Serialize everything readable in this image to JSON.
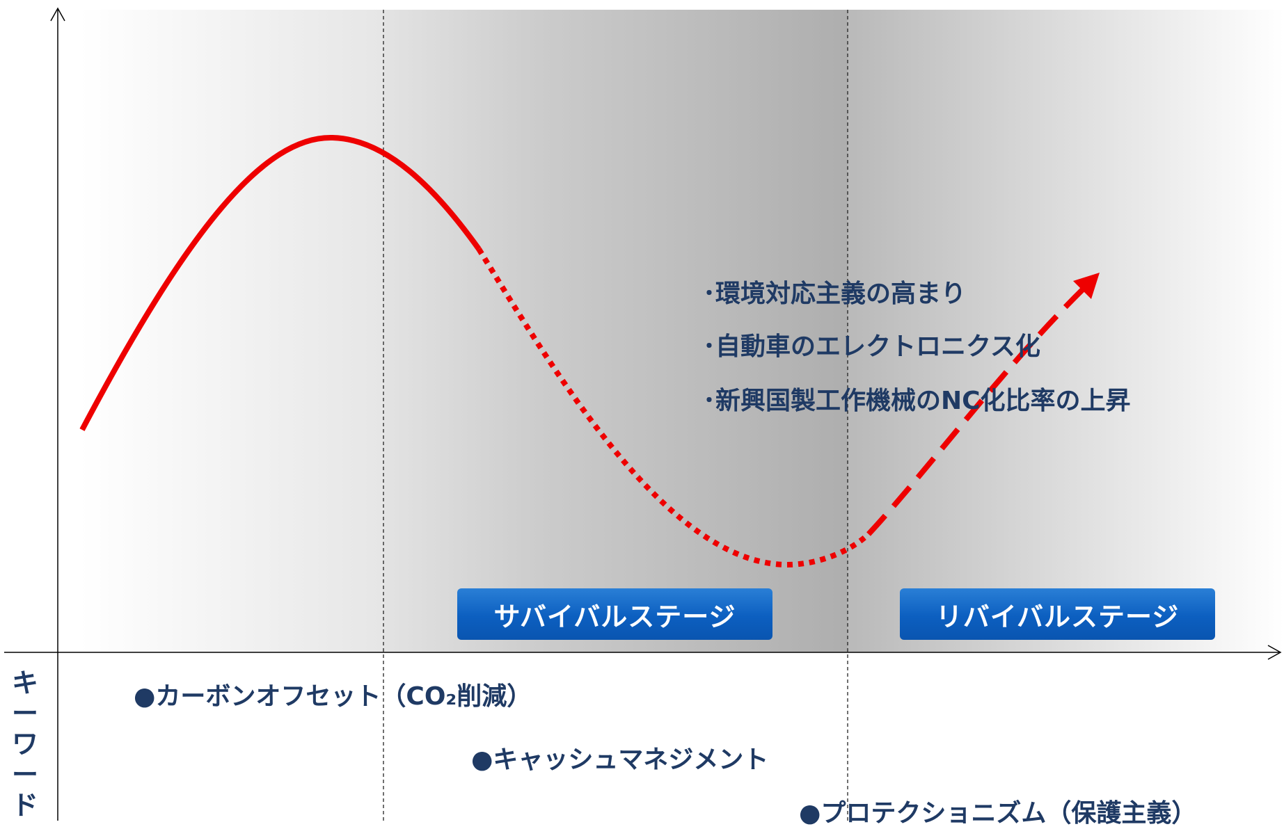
{
  "stages": {
    "survival": "サバイバルステージ",
    "revival": "リバイバルステージ"
  },
  "annotations": [
    "･環境対応主義の高まり",
    "･自動車のエレクトロニクス化",
    "･新興国製工作機械のNC化比率の上昇"
  ],
  "keywords_label": [
    "キ",
    "ー",
    "ワ",
    "ー",
    "ド"
  ],
  "keywords": [
    "●カーボンオフセット（CO₂削減）",
    "●キャッシュマネジメント",
    "●プロテクショニズム（保護主義）"
  ],
  "colors": {
    "curve": "#ee0000",
    "badge": "#0c5fc0",
    "text": "#1f3a64"
  }
}
